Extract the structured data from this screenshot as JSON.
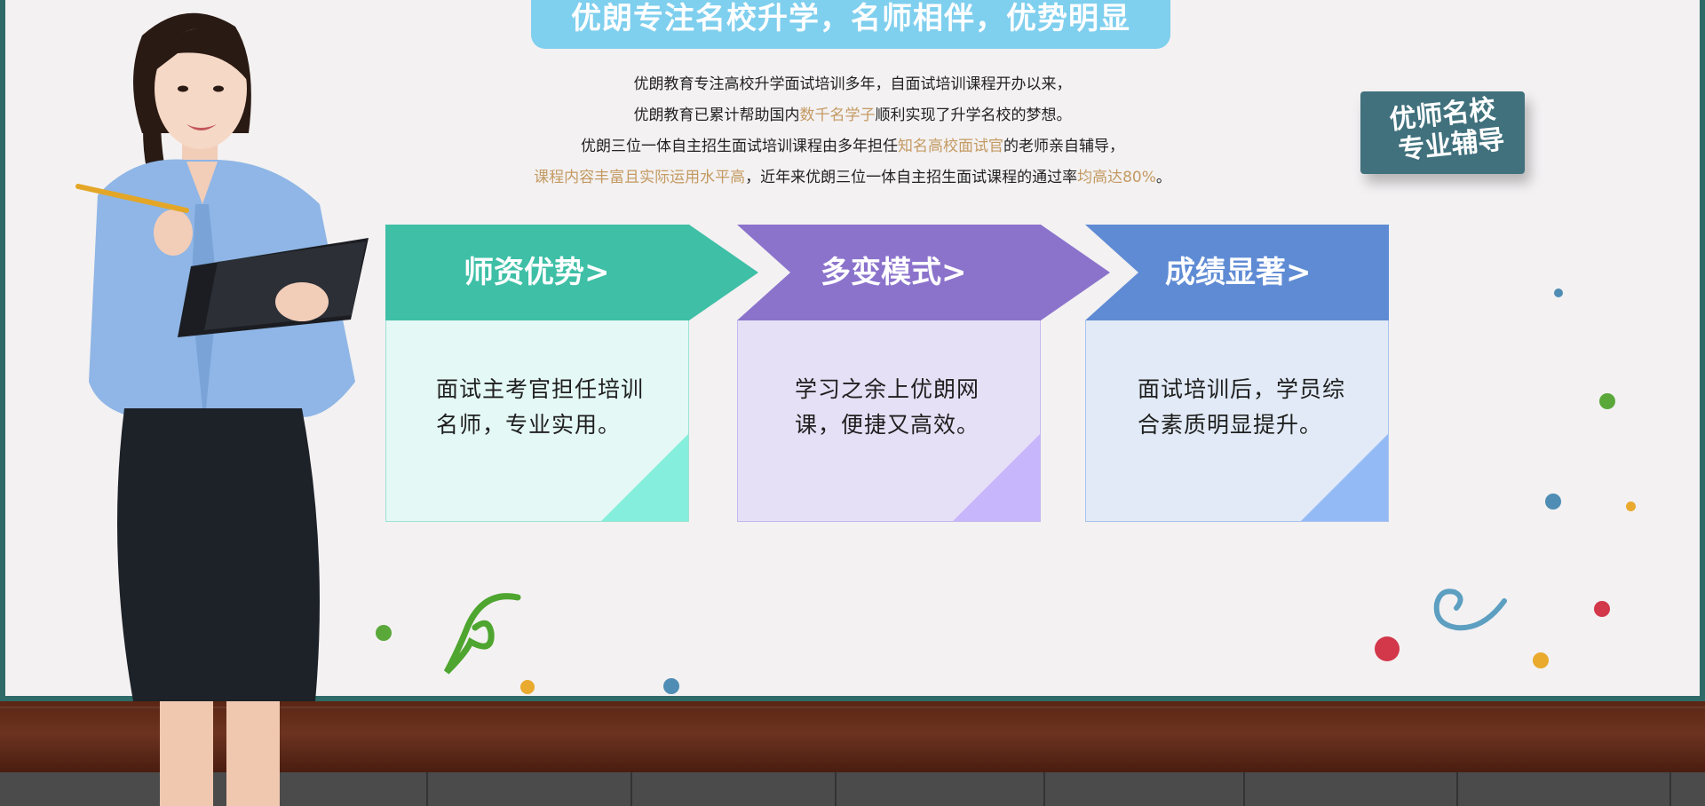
{
  "header": {
    "title": "优朗专注名校升学，名师相伴，优势明显"
  },
  "intro": {
    "line1": "优朗教育专注高校升学面试培训多年，自面试培训课程开办以来，",
    "line2_pre": "优朗教育已累计帮助国内",
    "line2_hl": "数千名学子",
    "line2_post": "顺利实现了升学名校的梦想。",
    "line3_pre": "优朗三位一体自主招生面试培训课程由多年担任",
    "line3_hl": "知名高校面试官",
    "line3_post": "的老师亲自辅导，",
    "line4_hl1": "课程内容丰富且实际运用水平高",
    "line4_mid": "，近年来优朗三位一体自主招生面试课程的通过率",
    "line4_hl2": "均高达80%",
    "line4_post": "。"
  },
  "badge": {
    "line1": "优师名校",
    "line2": "专业辅导"
  },
  "cards": [
    {
      "title": "师资优势>",
      "text": "面试主考官担任培训名师，专业实用。",
      "color": "#3ebfa6"
    },
    {
      "title": "多变模式>",
      "text": "学习之余上优朗网课，便捷又高效。",
      "color": "#8b73cc"
    },
    {
      "title": "成绩显著>",
      "text": "面试培训后，学员综合素质明显提升。",
      "color": "#5f8bd4"
    }
  ],
  "colors": {
    "highlight": "#c49a62",
    "banner": "#7fcfee",
    "badge": "#40717d",
    "board": "#f3f1f2",
    "frame": "#2e6a68"
  }
}
